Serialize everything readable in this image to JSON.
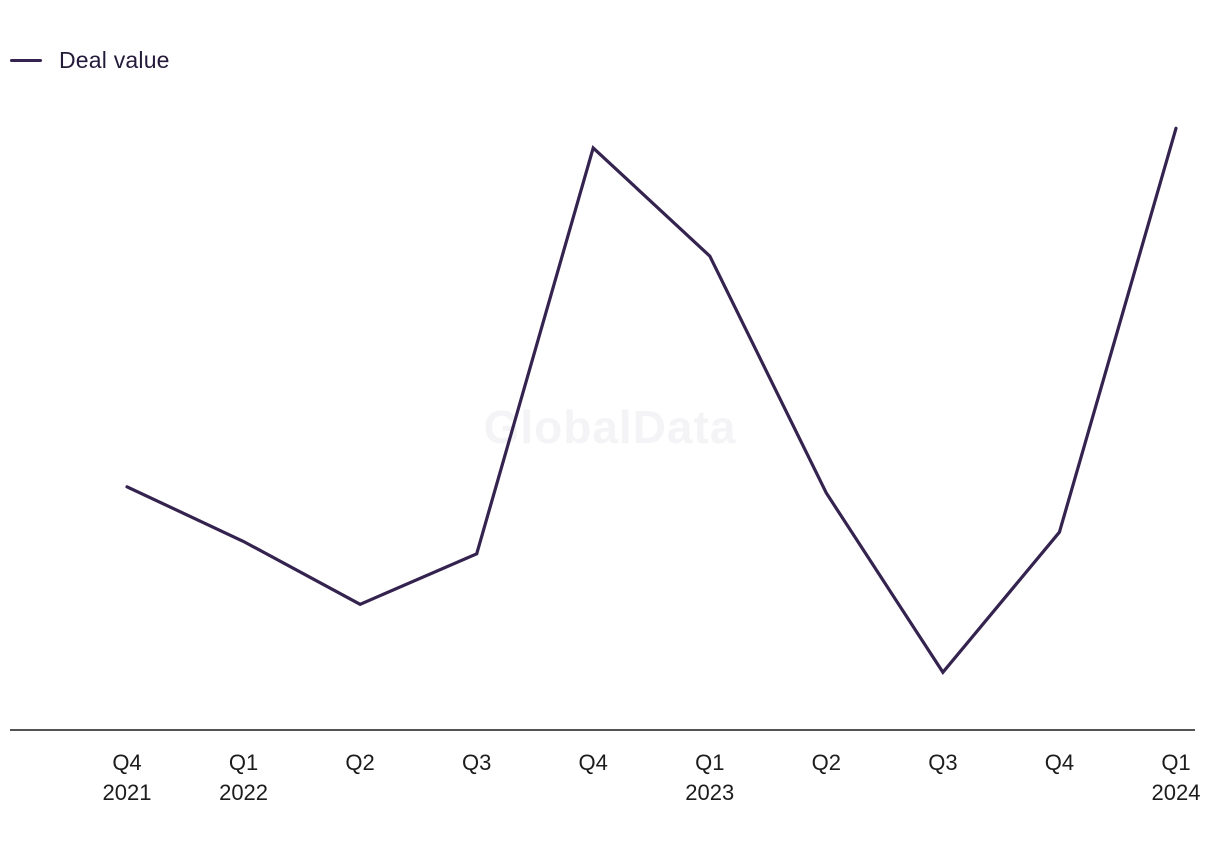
{
  "watermark": "GlobalData",
  "chart_data": {
    "type": "line",
    "categories": [
      [
        "Q4",
        "2021"
      ],
      [
        "Q1",
        "2022"
      ],
      [
        "Q2",
        ""
      ],
      [
        "Q3",
        ""
      ],
      [
        "Q4",
        ""
      ],
      [
        "Q1",
        "2023"
      ],
      [
        "Q2",
        ""
      ],
      [
        "Q3",
        ""
      ],
      [
        "Q4",
        ""
      ],
      [
        "Q1",
        "2024"
      ]
    ],
    "series": [
      {
        "name": "Deal value",
        "color": "#34234f",
        "values": [
          40.6,
          35.3,
          29.2,
          34.1,
          73.5,
          63.0,
          40.0,
          22.6,
          36.2,
          75.4
        ]
      }
    ],
    "ylim": [
      17,
      83
    ],
    "grid": false,
    "legend": "top-left",
    "xlabel": "",
    "ylabel": ""
  }
}
